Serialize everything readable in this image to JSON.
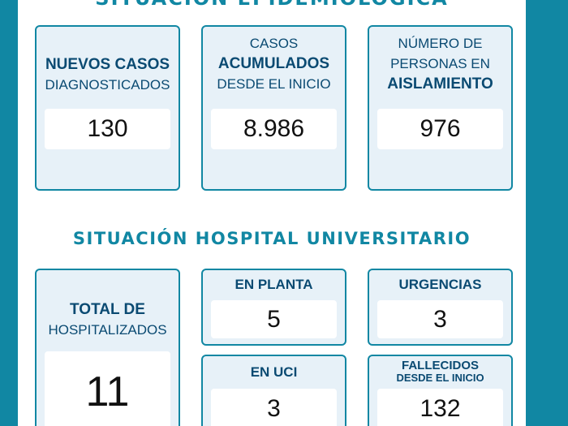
{
  "header": {
    "top_title": "SITUACIÓN EPIDEMIOLÓGICA"
  },
  "epidemiology": {
    "new_cases": {
      "line1": "NUEVOS CASOS",
      "line2": "DIAGNOSTICADOS",
      "value": "130"
    },
    "accumulated": {
      "line1": "CASOS",
      "line2": "ACUMULADOS",
      "line3": "DESDE EL INICIO",
      "value": "8.986"
    },
    "isolation": {
      "line1": "NÚMERO DE",
      "line2": "PERSONAS EN",
      "line3": "AISLAMIENTO",
      "value": "976"
    }
  },
  "hospital": {
    "title": "SITUACIÓN HOSPITAL UNIVERSITARIO",
    "total": {
      "line1": "TOTAL DE",
      "line2": "HOSPITALIZADOS",
      "value": "11"
    },
    "planta": {
      "label": "EN PLANTA",
      "value": "5"
    },
    "urgencias": {
      "label": "URGENCIAS",
      "value": "3"
    },
    "uci": {
      "label": "EN UCI",
      "value": "3"
    },
    "fallecidos": {
      "line1": "FALLECIDOS",
      "line2": "DESDE EL INICIO",
      "value": "132"
    }
  },
  "colors": {
    "frame": "#1187a3",
    "card_bg": "#e7f1f8",
    "label": "#0a4a72"
  }
}
